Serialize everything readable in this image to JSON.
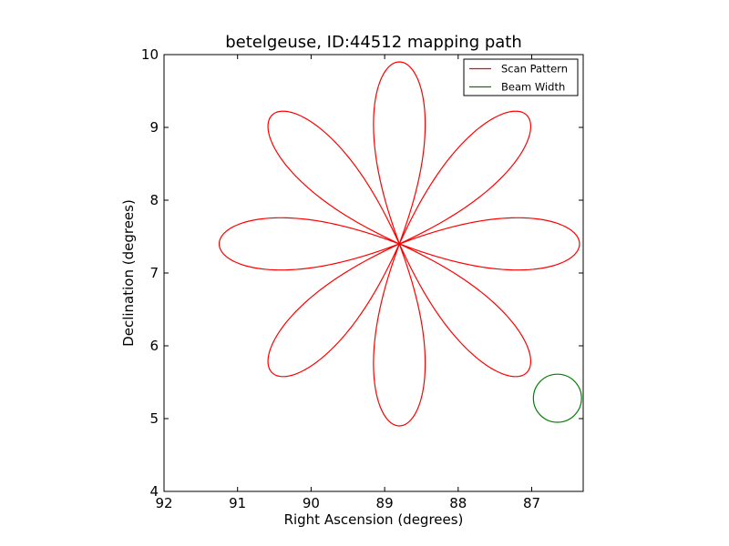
{
  "chart_data": {
    "type": "line",
    "title": "betelgeuse, ID:44512 mapping path",
    "xlabel": "Right Ascension (degrees)",
    "ylabel": "Declination (degrees)",
    "xlim": [
      92,
      86.3
    ],
    "ylim": [
      4,
      10
    ],
    "x_inverted": true,
    "xticks": [
      92,
      91,
      90,
      89,
      88,
      87
    ],
    "xtick_labels": [
      "92",
      "91",
      "90",
      "89",
      "88",
      "87"
    ],
    "yticks": [
      4,
      5,
      6,
      7,
      8,
      9,
      10
    ],
    "ytick_labels": [
      "4",
      "5",
      "6",
      "7",
      "8",
      "9",
      "10"
    ],
    "grid": false,
    "legend": {
      "position": "top-right",
      "entries": [
        "Scan Pattern",
        "Beam Width"
      ]
    },
    "series": [
      {
        "name": "Scan Pattern",
        "kind": "rose-curve",
        "color": "#ff0000",
        "center": [
          88.8,
          7.4
        ],
        "petals": 8,
        "petal_length_ra": 2.45,
        "petal_length_dec": 2.5,
        "petal_half_width_deg": 20
      },
      {
        "name": "Beam Width",
        "kind": "circle",
        "color": "#008000",
        "center": [
          86.65,
          5.28
        ],
        "radius_dec": 0.33
      }
    ]
  }
}
